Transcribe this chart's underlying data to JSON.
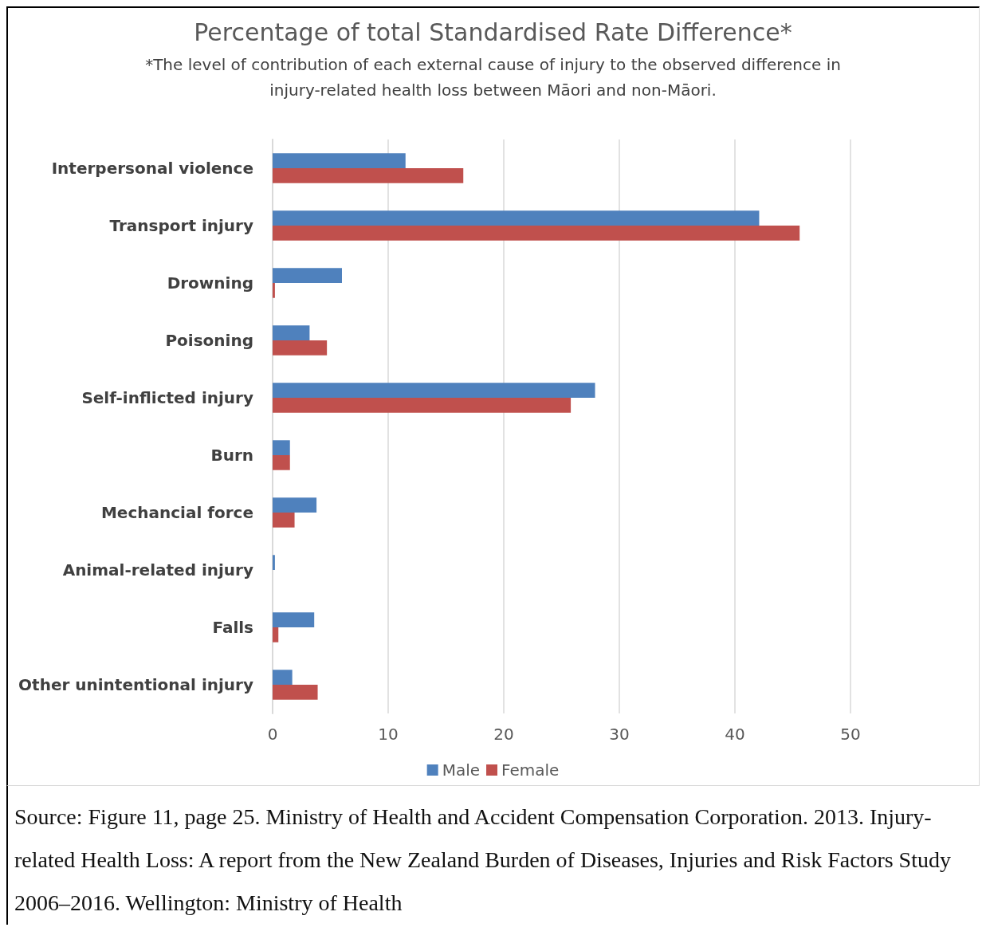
{
  "chart_data": {
    "type": "bar",
    "orientation": "horizontal",
    "title": "Percentage of total Standardised Rate Difference*",
    "subtitle": "*The level of contribution of each external cause of injury to the observed difference in\ninjury-related health loss between Māori and non-Māori.",
    "categories": [
      "Interpersonal violence",
      "Transport injury",
      "Drowning",
      "Poisoning",
      "Self-inflicted injury",
      "Burn",
      "Mechancial force",
      "Animal-related injury",
      "Falls",
      "Other unintentional injury"
    ],
    "series": [
      {
        "name": "Male",
        "color": "#4f81bd",
        "values": [
          11.5,
          42.1,
          6.0,
          3.2,
          27.9,
          1.5,
          3.8,
          0.2,
          3.6,
          1.7
        ]
      },
      {
        "name": "Female",
        "color": "#c0504d",
        "values": [
          16.5,
          45.6,
          0.2,
          4.7,
          25.8,
          1.5,
          1.9,
          0,
          0.5,
          3.9
        ]
      }
    ],
    "xlim": [
      0,
      50
    ],
    "xticks": [
      0,
      10,
      20,
      30,
      40,
      50
    ],
    "grid": "x",
    "legend": "bottom",
    "annotations": [
      "Source: Figure 11, page 25. Ministry of Health and Accident Compensation Corporation. 2013. Injury-related Health Loss: A report from the New Zealand Burden of Diseases, Injuries and Risk Factors Study 2006–2016. Wellington: Ministry of Health"
    ]
  }
}
